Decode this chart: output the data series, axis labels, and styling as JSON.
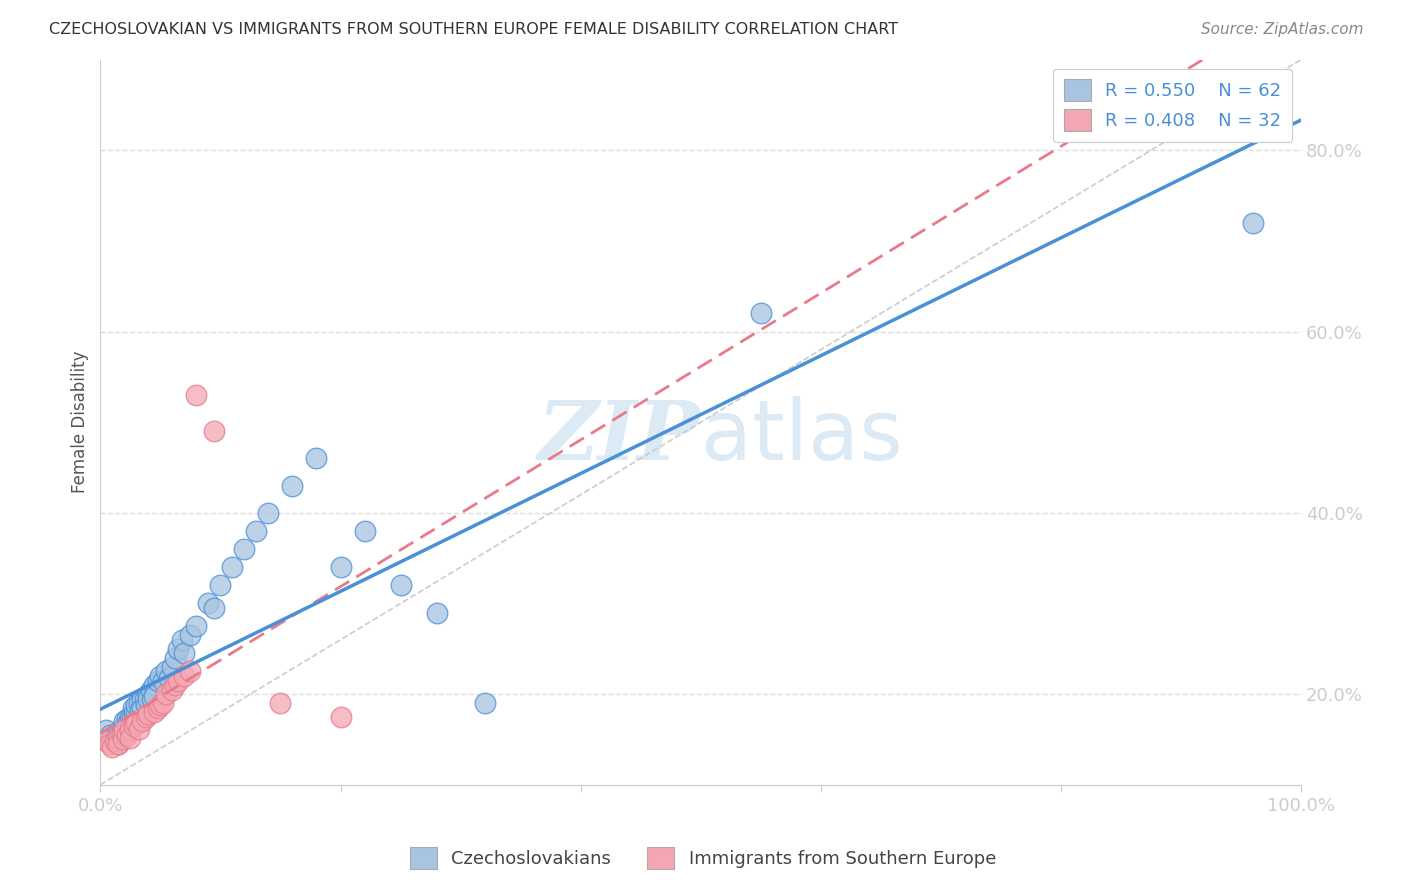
{
  "title": "CZECHOSLOVAKIAN VS IMMIGRANTS FROM SOUTHERN EUROPE FEMALE DISABILITY CORRELATION CHART",
  "source": "Source: ZipAtlas.com",
  "ylabel": "Female Disability",
  "xlim": [
    0.0,
    1.0
  ],
  "ylim": [
    0.1,
    0.9
  ],
  "xtick_labels": [
    "0.0%",
    "",
    "",
    "",
    "",
    "100.0%"
  ],
  "xtick_vals": [
    0.0,
    0.2,
    0.4,
    0.6,
    0.8,
    1.0
  ],
  "ytick_labels": [
    "20.0%",
    "40.0%",
    "60.0%",
    "80.0%"
  ],
  "ytick_vals": [
    0.2,
    0.4,
    0.6,
    0.8
  ],
  "blue_color": "#a8c4e0",
  "pink_color": "#f4a7b3",
  "blue_line_color": "#4a90d9",
  "pink_line_color": "#e87a8a",
  "diag_line_color": "#cccccc",
  "text_color": "#4a90d9",
  "R_blue": 0.55,
  "N_blue": 62,
  "R_pink": 0.408,
  "N_pink": 32,
  "blue_scatter_x": [
    0.005,
    0.008,
    0.01,
    0.012,
    0.013,
    0.015,
    0.015,
    0.018,
    0.019,
    0.02,
    0.02,
    0.022,
    0.022,
    0.023,
    0.025,
    0.025,
    0.026,
    0.027,
    0.028,
    0.028,
    0.03,
    0.03,
    0.032,
    0.033,
    0.035,
    0.035,
    0.037,
    0.038,
    0.04,
    0.04,
    0.042,
    0.043,
    0.045,
    0.045,
    0.048,
    0.05,
    0.052,
    0.055,
    0.057,
    0.06,
    0.062,
    0.065,
    0.068,
    0.07,
    0.075,
    0.08,
    0.09,
    0.095,
    0.1,
    0.11,
    0.12,
    0.13,
    0.14,
    0.16,
    0.18,
    0.2,
    0.22,
    0.25,
    0.28,
    0.32,
    0.55,
    0.96
  ],
  "blue_scatter_y": [
    0.16,
    0.155,
    0.15,
    0.148,
    0.152,
    0.145,
    0.158,
    0.162,
    0.155,
    0.165,
    0.17,
    0.16,
    0.172,
    0.168,
    0.175,
    0.165,
    0.175,
    0.185,
    0.17,
    0.18,
    0.178,
    0.188,
    0.19,
    0.183,
    0.195,
    0.185,
    0.195,
    0.188,
    0.2,
    0.195,
    0.205,
    0.195,
    0.21,
    0.198,
    0.215,
    0.22,
    0.215,
    0.225,
    0.218,
    0.23,
    0.24,
    0.25,
    0.26,
    0.245,
    0.265,
    0.275,
    0.3,
    0.295,
    0.32,
    0.34,
    0.36,
    0.38,
    0.4,
    0.43,
    0.46,
    0.34,
    0.38,
    0.32,
    0.29,
    0.19,
    0.62,
    0.72
  ],
  "pink_scatter_x": [
    0.005,
    0.008,
    0.01,
    0.012,
    0.015,
    0.015,
    0.018,
    0.019,
    0.02,
    0.022,
    0.025,
    0.025,
    0.028,
    0.03,
    0.032,
    0.035,
    0.038,
    0.04,
    0.045,
    0.048,
    0.05,
    0.052,
    0.055,
    0.06,
    0.062,
    0.065,
    0.07,
    0.075,
    0.08,
    0.095,
    0.15,
    0.2
  ],
  "pink_scatter_y": [
    0.148,
    0.145,
    0.142,
    0.148,
    0.15,
    0.145,
    0.155,
    0.15,
    0.16,
    0.155,
    0.16,
    0.152,
    0.165,
    0.168,
    0.162,
    0.17,
    0.175,
    0.178,
    0.18,
    0.185,
    0.188,
    0.19,
    0.2,
    0.205,
    0.21,
    0.215,
    0.22,
    0.225,
    0.53,
    0.49,
    0.19,
    0.175
  ],
  "watermark_zip": "ZIP",
  "watermark_atlas": "atlas",
  "bottom_legend_blue": "Czechoslovakians",
  "bottom_legend_pink": "Immigrants from Southern Europe"
}
